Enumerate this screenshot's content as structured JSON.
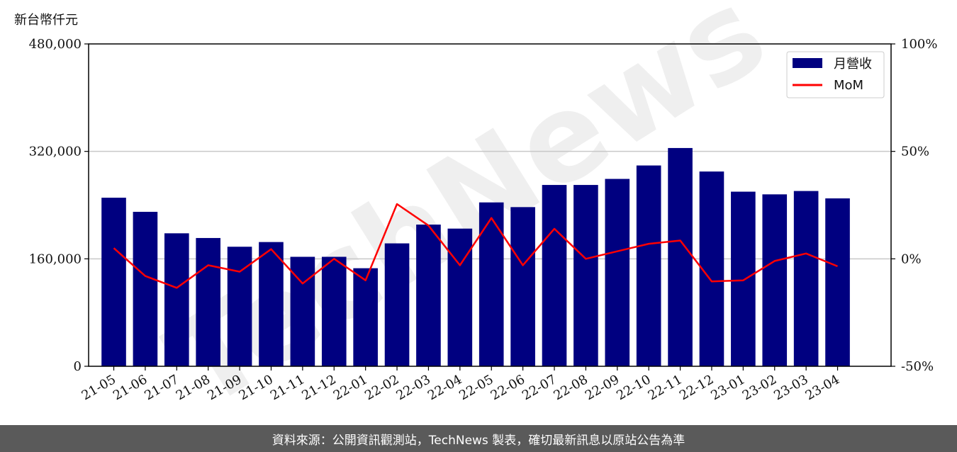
{
  "unit_label": "新台幣仟元",
  "watermark": "TechNews",
  "footer": "資料來源：公開資訊觀測站，TechNews 製表，確切最新訊息以原站公告為準",
  "chart_data": {
    "type": "bar",
    "categories": [
      "21-05",
      "21-06",
      "21-07",
      "21-08",
      "21-09",
      "21-10",
      "21-11",
      "21-12",
      "22-01",
      "22-02",
      "22-03",
      "22-04",
      "22-05",
      "22-06",
      "22-07",
      "22-08",
      "22-09",
      "22-10",
      "22-11",
      "22-12",
      "23-01",
      "23-02",
      "23-03",
      "23-04"
    ],
    "series": [
      {
        "name": "月營收",
        "type": "bar",
        "axis": "left",
        "color": "#000080",
        "values": [
          251000,
          230000,
          198000,
          191000,
          178000,
          185000,
          163000,
          163000,
          146000,
          183000,
          211000,
          205000,
          244000,
          237000,
          270000,
          270000,
          279000,
          299000,
          325000,
          290000,
          260000,
          256000,
          261000,
          250000
        ]
      },
      {
        "name": "MoM",
        "type": "line",
        "axis": "right",
        "color": "#ff0000",
        "values": [
          5,
          -8,
          -13.5,
          -3,
          -6,
          4.5,
          -11.5,
          0,
          -10,
          25.5,
          15.5,
          -3,
          19,
          -3,
          14,
          0,
          3.5,
          7,
          8.5,
          -10.5,
          -10,
          -1,
          2.5,
          -3.5
        ]
      }
    ],
    "ylim": [
      0,
      480000
    ],
    "yticks": [
      "0",
      "160,000",
      "320,000",
      "480,000"
    ],
    "ytick_values": [
      0,
      160000,
      320000,
      480000
    ],
    "y2lim": [
      -50,
      100
    ],
    "y2ticks": [
      "-50%",
      "0%",
      "50%",
      "100%"
    ],
    "y2tick_values": [
      -50,
      0,
      50,
      100
    ],
    "grid": "horizontal",
    "legend": "top-right"
  }
}
